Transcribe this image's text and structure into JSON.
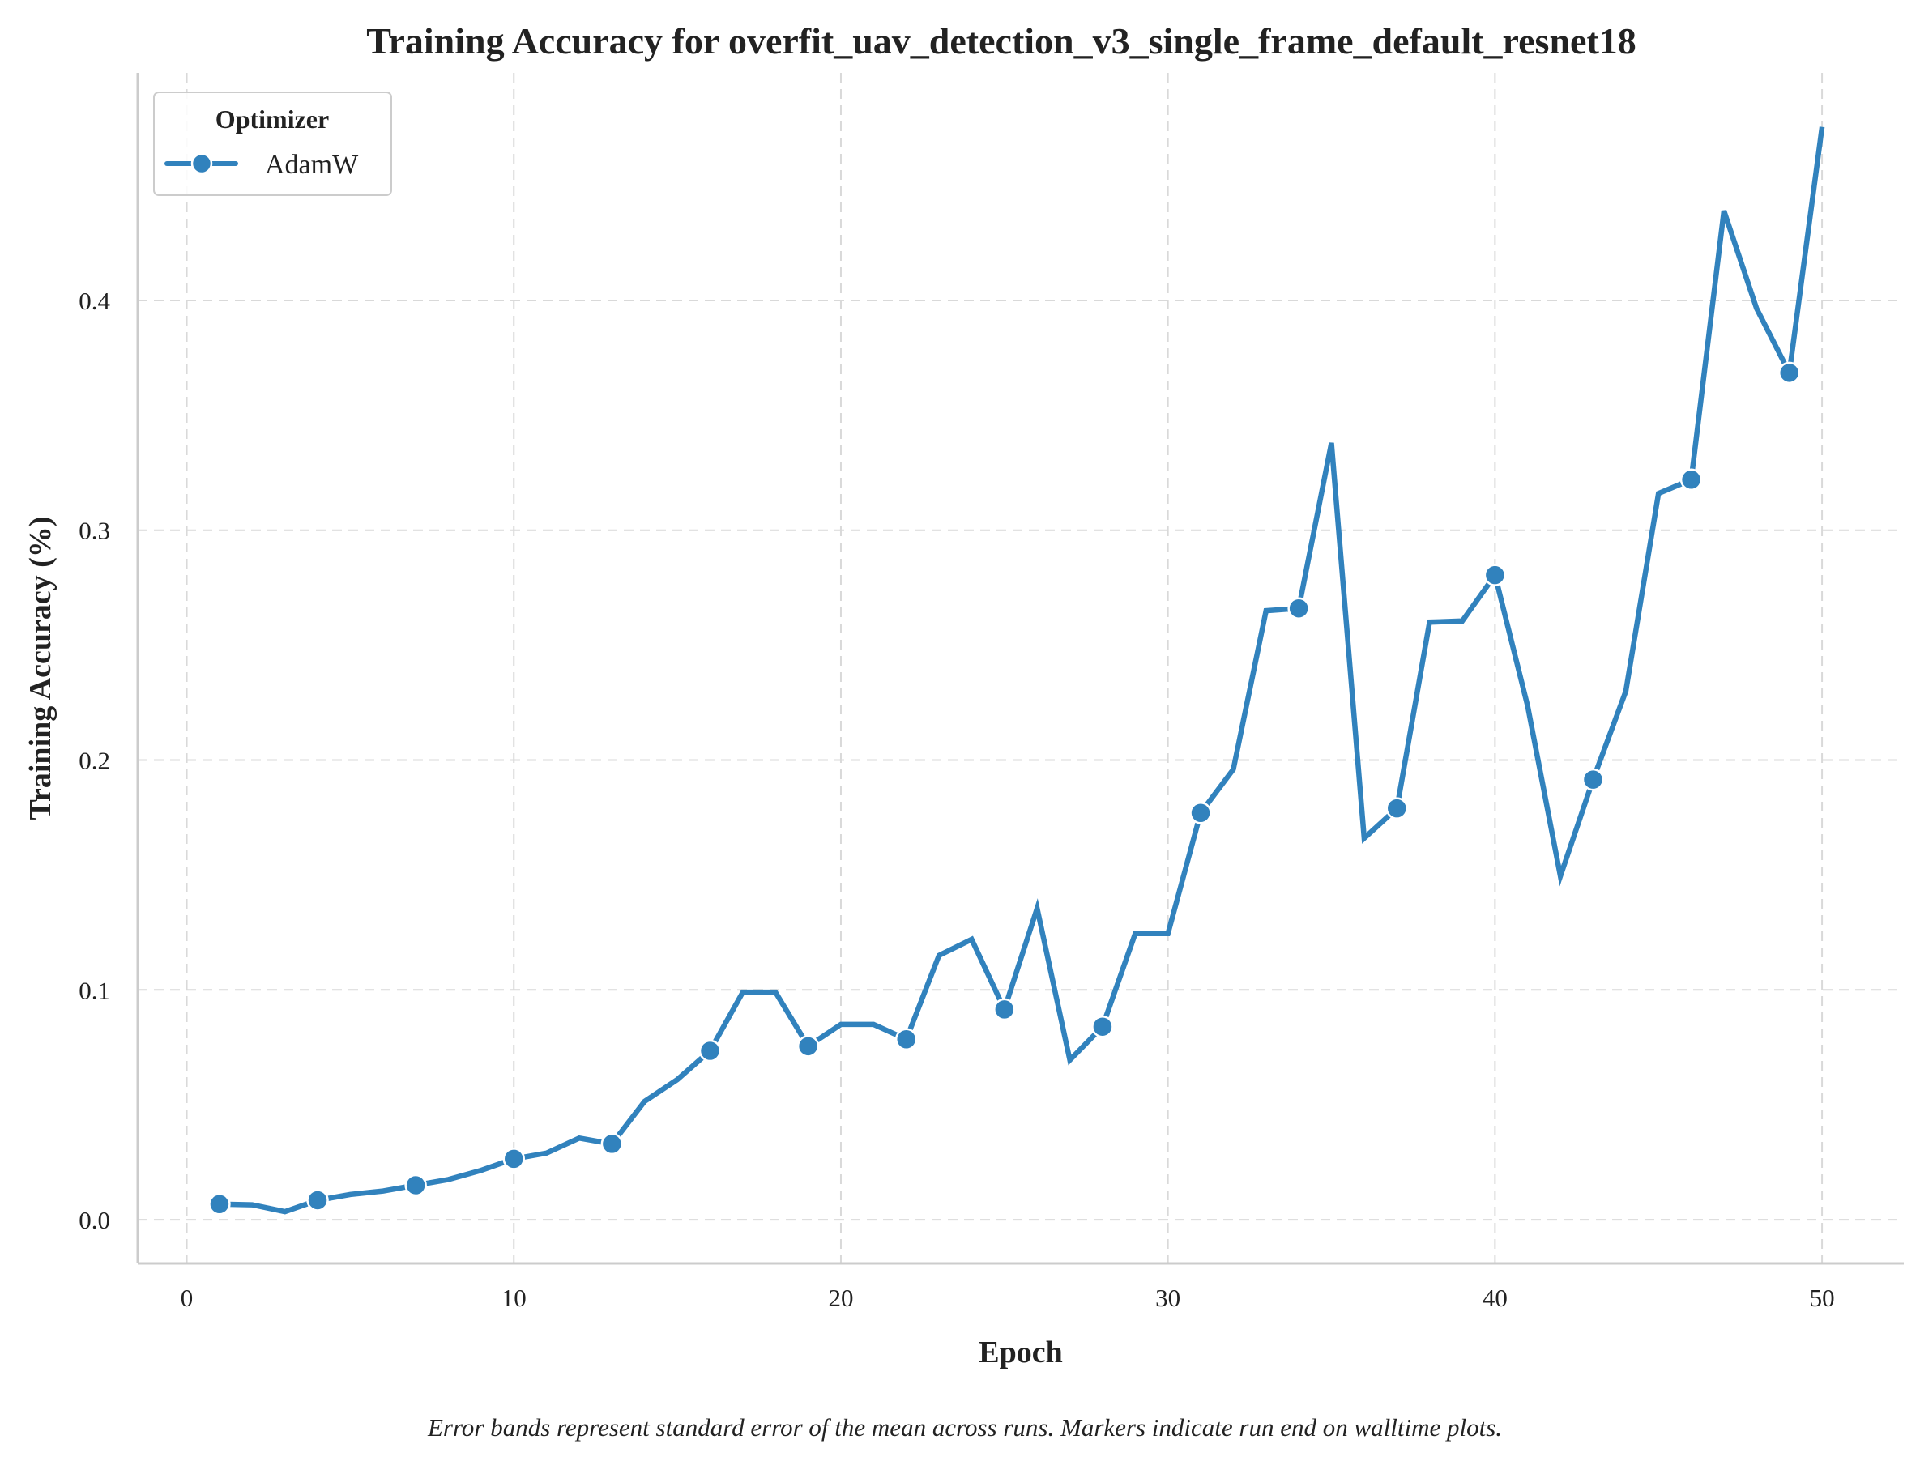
{
  "chart_data": {
    "type": "line",
    "title": "Training Accuracy for overfit_uav_detection_v3_single_frame_default_resnet18",
    "xlabel": "Epoch",
    "ylabel": "Training Accuracy (%)",
    "xlim": [
      -1.5,
      52.5
    ],
    "ylim": [
      -0.019,
      0.499
    ],
    "xticks": [
      0,
      10,
      20,
      30,
      40,
      50
    ],
    "yticks": [
      0.0,
      0.1,
      0.2,
      0.3,
      0.4
    ],
    "ytick_labels": [
      "0.0",
      "0.1",
      "0.2",
      "0.3",
      "0.4"
    ],
    "grid": true,
    "legend": {
      "title": "Optimizer",
      "placement": "top-left"
    },
    "series": [
      {
        "name": "AdamW",
        "color": "#3182bd",
        "x": [
          1,
          2,
          3,
          4,
          5,
          6,
          7,
          8,
          9,
          10,
          11,
          12,
          13,
          14,
          15,
          16,
          17,
          18,
          19,
          20,
          21,
          22,
          23,
          24,
          25,
          26,
          27,
          28,
          29,
          30,
          31,
          32,
          33,
          34,
          35,
          36,
          37,
          38,
          39,
          40,
          41,
          42,
          43,
          44,
          45,
          46,
          47,
          48,
          49,
          50
        ],
        "values": [
          0.0068,
          0.0065,
          0.0035,
          0.0085,
          0.011,
          0.0125,
          0.015,
          0.0175,
          0.0215,
          0.0265,
          0.029,
          0.0355,
          0.033,
          0.0515,
          0.061,
          0.0735,
          0.099,
          0.099,
          0.0755,
          0.085,
          0.085,
          0.0785,
          0.115,
          0.122,
          0.0915,
          0.1355,
          0.0695,
          0.084,
          0.1245,
          0.1245,
          0.177,
          0.196,
          0.265,
          0.266,
          0.338,
          0.166,
          0.179,
          0.26,
          0.2605,
          0.2805,
          0.2235,
          0.1495,
          0.1915,
          0.23,
          0.316,
          0.322,
          0.439,
          0.3965,
          0.3685,
          0.4755
        ],
        "marker_x": [
          1,
          4,
          7,
          10,
          13,
          16,
          19,
          22,
          25,
          28,
          31,
          34,
          37,
          40,
          43,
          46,
          49
        ]
      }
    ],
    "caption": "Error bands represent standard error of the mean across runs. Markers indicate run end on walltime plots."
  }
}
